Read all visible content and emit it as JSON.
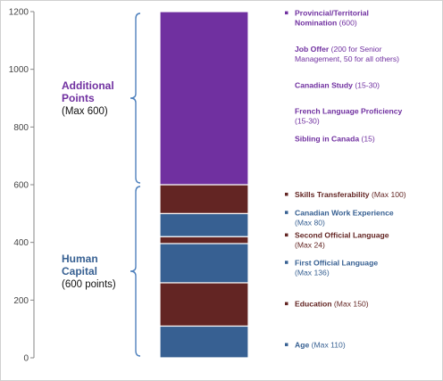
{
  "chart_data": {
    "type": "bar",
    "stacked": true,
    "ylim": [
      0,
      1200
    ],
    "yticks": [
      0,
      200,
      400,
      600,
      800,
      1000,
      1200
    ],
    "grid": false,
    "segments": [
      {
        "key": "age",
        "name": "Age",
        "detail": "(Max 110)",
        "start": 0,
        "end": 110,
        "color": "#376092"
      },
      {
        "key": "education",
        "name": "Education",
        "detail": "(Max 150)",
        "start": 110,
        "end": 260,
        "color": "#632523"
      },
      {
        "key": "first-official-language",
        "name": "First Official Language",
        "detail": "(Max 136)",
        "start": 260,
        "end": 396,
        "color": "#376092"
      },
      {
        "key": "second-official-language",
        "name": "Second Official Language",
        "detail": "(Max 24)",
        "start": 396,
        "end": 420,
        "color": "#632523"
      },
      {
        "key": "canadian-work-experience",
        "name": "Canadian Work Experience",
        "detail": "(Max 80)",
        "start": 420,
        "end": 500,
        "color": "#376092"
      },
      {
        "key": "skills-transferability",
        "name": "Skills Transferability",
        "detail": "(Max 100)",
        "start": 500,
        "end": 600,
        "color": "#632523"
      },
      {
        "key": "additional-points",
        "name": "Additional Points",
        "detail": "(Max 600)",
        "start": 600,
        "end": 1200,
        "color": "#7030A0"
      }
    ],
    "labels": [
      {
        "key": "age",
        "value": 45,
        "color": "#376092",
        "bullet": true,
        "lines": [
          [
            {
              "text": "Age",
              "bold": true
            },
            {
              "text": " (Max 110)",
              "bold": false
            }
          ]
        ]
      },
      {
        "key": "education",
        "value": 187,
        "color": "#632523",
        "bullet": true,
        "lines": [
          [
            {
              "text": "Education",
              "bold": true
            },
            {
              "text": " (Max 150)",
              "bold": false
            }
          ]
        ]
      },
      {
        "key": "first-official-language",
        "value": 313,
        "color": "#376092",
        "bullet": true,
        "lines": [
          [
            {
              "text": "First Official Language",
              "bold": true
            }
          ],
          [
            {
              "text": "(Max 136)",
              "bold": false
            }
          ]
        ]
      },
      {
        "key": "second-official-language",
        "value": 408,
        "color": "#632523",
        "bullet": true,
        "lines": [
          [
            {
              "text": "Second Official Language",
              "bold": true
            }
          ],
          [
            {
              "text": "(Max 24)",
              "bold": false
            }
          ]
        ]
      },
      {
        "key": "canadian-work-experience",
        "value": 486,
        "color": "#376092",
        "bullet": true,
        "lines": [
          [
            {
              "text": "Canadian Work Experience",
              "bold": true
            }
          ],
          [
            {
              "text": "(Max 80)",
              "bold": false
            }
          ]
        ]
      },
      {
        "key": "skills-transferability",
        "value": 566,
        "color": "#632523",
        "bullet": true,
        "lines": [
          [
            {
              "text": "Skills Transferability",
              "bold": true
            },
            {
              "text": " (Max 100)",
              "bold": false
            }
          ]
        ]
      },
      {
        "key": "provincial-nomination",
        "value": 1178,
        "color": "#7030A0",
        "bullet": true,
        "lines": [
          [
            {
              "text": "Provincial/Territorial",
              "bold": true
            }
          ],
          [
            {
              "text": "Nomination",
              "bold": true
            },
            {
              "text": " (600)",
              "bold": false
            }
          ]
        ]
      },
      {
        "key": "job-offer",
        "value": 1053,
        "color": "#7030A0",
        "bullet": false,
        "lines": [
          [
            {
              "text": "Job Offer",
              "bold": true
            },
            {
              "text": " (200 for Senior",
              "bold": false
            }
          ],
          [
            {
              "text": "Management, 50 for all others)",
              "bold": false
            }
          ]
        ]
      },
      {
        "key": "canadian-study",
        "value": 945,
        "color": "#7030A0",
        "bullet": false,
        "lines": [
          [
            {
              "text": "Canadian Study",
              "bold": true
            },
            {
              "text": " (15-30)",
              "bold": false
            }
          ]
        ]
      },
      {
        "key": "french-language-proficiency",
        "value": 838,
        "color": "#7030A0",
        "bullet": false,
        "lines": [
          [
            {
              "text": "French Language Proficiency",
              "bold": true
            }
          ],
          [
            {
              "text": "(15-30)",
              "bold": false
            }
          ]
        ]
      },
      {
        "key": "sibling-in-canada",
        "value": 760,
        "color": "#7030A0",
        "bullet": false,
        "lines": [
          [
            {
              "text": "Sibling in Canada",
              "bold": true
            },
            {
              "text": " (15)",
              "bold": false
            }
          ]
        ]
      }
    ],
    "groups": [
      {
        "key": "additional-points",
        "title_lines": [
          "Additional",
          "Points"
        ],
        "subtitle": "(Max 600)",
        "range": [
          600,
          1200
        ],
        "title_color": "#7030A0"
      },
      {
        "key": "human-capital",
        "title_lines": [
          "Human",
          "Capital"
        ],
        "subtitle": "(600 points)",
        "range": [
          0,
          600
        ],
        "title_color": "#376092"
      }
    ],
    "brace_color": "#4F81BD"
  }
}
